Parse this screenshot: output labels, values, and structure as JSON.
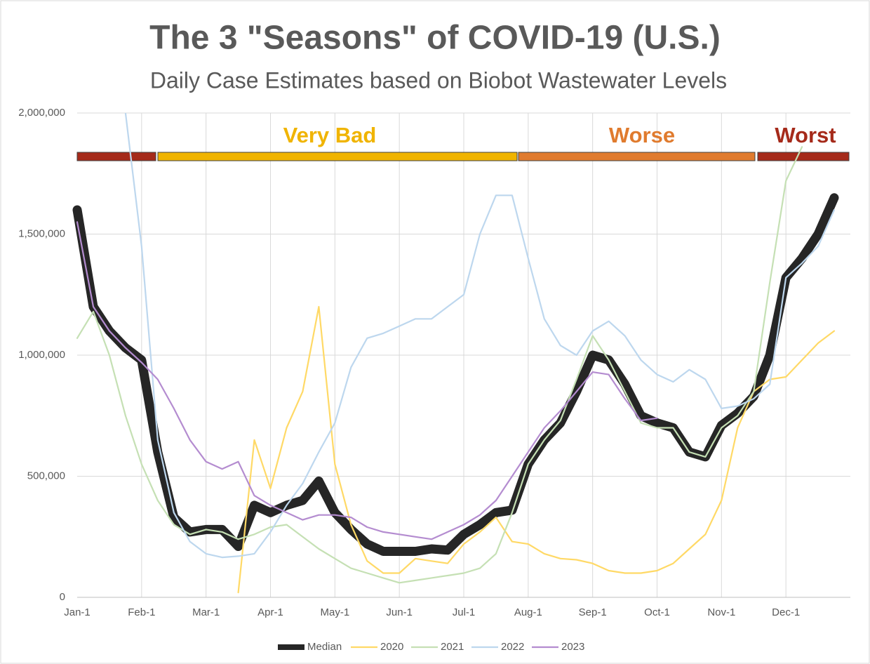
{
  "chart_data": {
    "type": "line",
    "title": "The 3 \"Seasons\" of COVID-19 (U.S.)",
    "subtitle": "Daily Case Estimates based on Biobot Wastewater Levels",
    "categories": [
      "Jan-1",
      null,
      null,
      null,
      "Feb-1",
      null,
      null,
      null,
      "Mar-1",
      null,
      null,
      null,
      "Apr-1",
      null,
      null,
      null,
      "May-1",
      null,
      null,
      null,
      "Jun-1",
      null,
      null,
      null,
      "Jul-1",
      null,
      null,
      null,
      "Aug-1",
      null,
      null,
      null,
      "Sep-1",
      null,
      null,
      null,
      "Oct-1",
      null,
      null,
      null,
      "Nov-1",
      null,
      null,
      null,
      "Dec-1",
      null,
      null,
      null
    ],
    "ylim": [
      0,
      2000000
    ],
    "yticks": [
      0,
      {
        "value": 500000,
        "label": "500,000"
      },
      {
        "value": 1000000,
        "label": "1,000,000"
      },
      {
        "value": 1500000,
        "label": "1,500,000"
      },
      {
        "value": 2000000,
        "label": "2,000,000"
      }
    ],
    "grid": true,
    "legend": "bottom",
    "seasons": [
      {
        "label": null,
        "color": "#a52a1a"
      },
      {
        "label": "Very Bad",
        "color": "#f0b400"
      },
      {
        "label": "Worse",
        "color": "#e07b2e"
      },
      {
        "label": "Worst",
        "color": "#a52a1a"
      }
    ],
    "series": [
      {
        "name": "Median",
        "color": "#262626",
        "values": [
          1600000,
          1200000,
          1100000,
          1030000,
          980000,
          600000,
          330000,
          270000,
          280000,
          280000,
          210000,
          380000,
          350000,
          380000,
          400000,
          480000,
          350000,
          280000,
          220000,
          190000,
          190000,
          190000,
          200000,
          195000,
          260000,
          300000,
          350000,
          360000,
          550000,
          650000,
          720000,
          850000,
          1000000,
          980000,
          880000,
          750000,
          720000,
          700000,
          600000,
          580000,
          710000,
          760000,
          830000,
          1000000,
          1320000,
          1400000,
          1500000,
          1650000
        ]
      },
      {
        "name": "2020",
        "color": "#ffd966",
        "values": [
          null,
          null,
          null,
          null,
          null,
          null,
          null,
          null,
          null,
          null,
          20000,
          650000,
          450000,
          700000,
          850000,
          1200000,
          550000,
          300000,
          150000,
          100000,
          100000,
          160000,
          150000,
          140000,
          220000,
          270000,
          330000,
          230000,
          220000,
          180000,
          160000,
          155000,
          140000,
          110000,
          100000,
          100000,
          110000,
          140000,
          200000,
          260000,
          400000,
          700000,
          850000,
          900000,
          910000,
          980000,
          1050000,
          1100000
        ]
      },
      {
        "name": "2021",
        "color": "#c5e0b4",
        "values": [
          1070000,
          1180000,
          1000000,
          750000,
          550000,
          400000,
          300000,
          260000,
          280000,
          270000,
          240000,
          260000,
          290000,
          300000,
          250000,
          200000,
          160000,
          120000,
          100000,
          80000,
          60000,
          70000,
          80000,
          90000,
          100000,
          120000,
          180000,
          350000,
          550000,
          650000,
          730000,
          900000,
          1080000,
          980000,
          850000,
          720000,
          700000,
          700000,
          600000,
          580000,
          700000,
          750000,
          850000,
          1300000,
          1720000,
          1860000,
          null,
          null
        ]
      },
      {
        "name": "2022",
        "color": "#bdd7ee",
        "values": [
          null,
          null,
          null,
          2000000,
          1450000,
          650000,
          350000,
          230000,
          180000,
          165000,
          170000,
          180000,
          270000,
          380000,
          470000,
          600000,
          720000,
          950000,
          1070000,
          1090000,
          1120000,
          1150000,
          1150000,
          1200000,
          1250000,
          1500000,
          1660000,
          1660000,
          1400000,
          1150000,
          1040000,
          1000000,
          1100000,
          1140000,
          1080000,
          980000,
          920000,
          890000,
          940000,
          900000,
          780000,
          790000,
          820000,
          880000,
          1320000,
          1380000,
          1450000,
          1600000
        ]
      },
      {
        "name": "2023",
        "color": "#b48cd0",
        "values": [
          1550000,
          1200000,
          1100000,
          1030000,
          970000,
          900000,
          780000,
          650000,
          560000,
          530000,
          560000,
          420000,
          380000,
          350000,
          320000,
          340000,
          340000,
          330000,
          290000,
          270000,
          260000,
          250000,
          240000,
          270000,
          300000,
          340000,
          400000,
          500000,
          600000,
          700000,
          770000,
          850000,
          930000,
          920000,
          820000,
          730000,
          740000,
          null,
          null,
          null,
          null,
          null,
          null,
          null,
          null,
          null,
          null,
          null
        ]
      }
    ]
  }
}
